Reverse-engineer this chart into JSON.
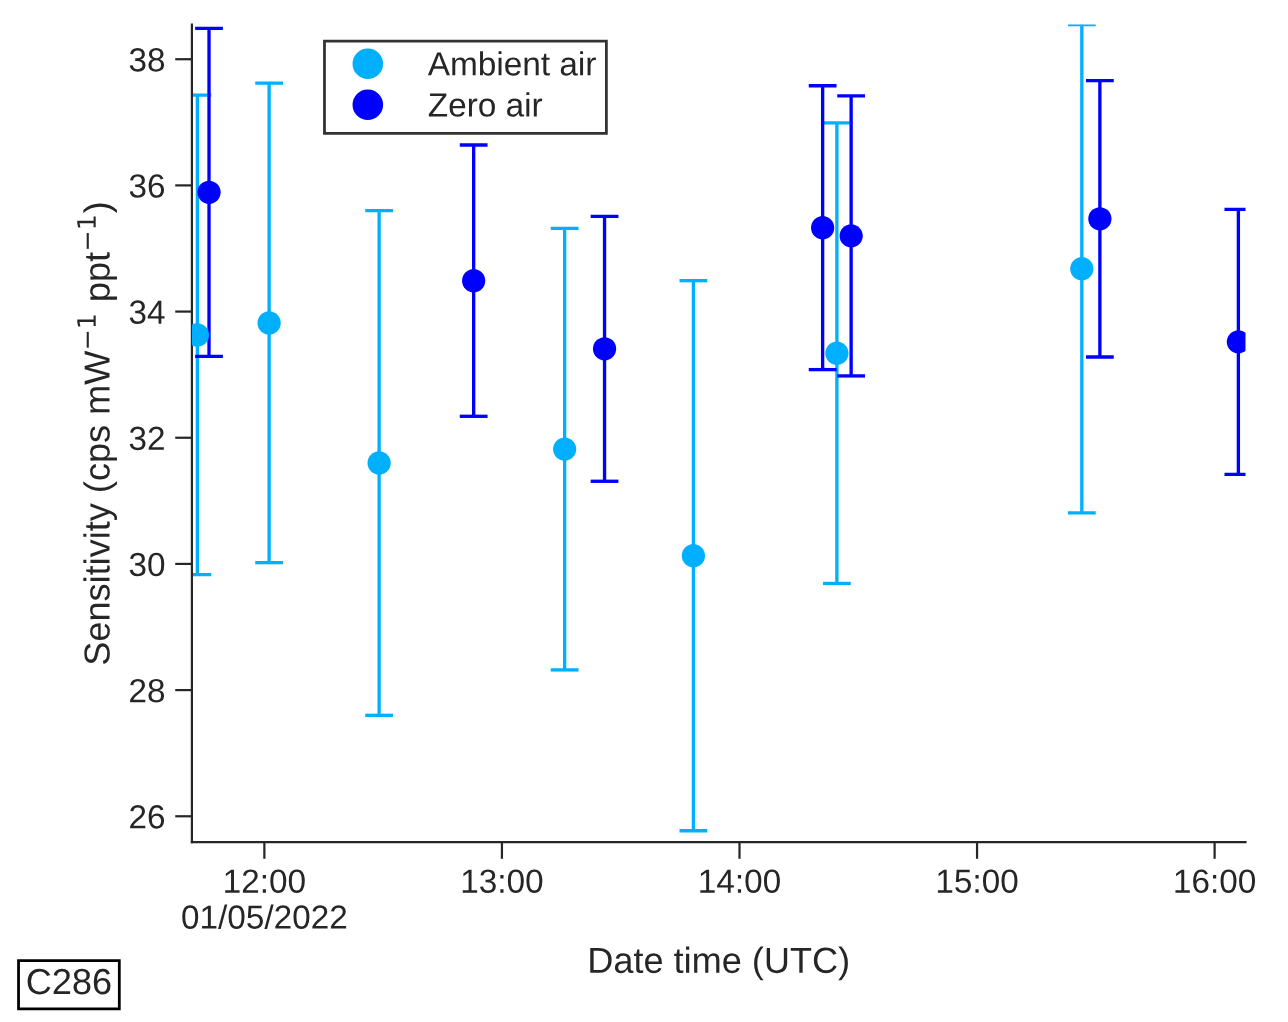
{
  "chart_data": {
    "type": "scatter",
    "xlabel": "Date time (UTC)",
    "ylabel": "Sensitivity (cps mW$^{−1}$ ppt$^{−1}$)",
    "annotations": [
      "C286"
    ],
    "series": [
      {
        "name": "Ambient air",
        "color": "#00b0ff",
        "x": [
          11.718,
          12.02,
          12.483,
          13.264,
          13.806,
          14.41,
          15.441
        ],
        "values": [
          33.63,
          33.82,
          31.6,
          31.82,
          30.13,
          33.34,
          34.68
        ],
        "errors": [
          3.8,
          3.8,
          4.0,
          3.5,
          4.36,
          3.65,
          3.87
        ]
      },
      {
        "name": "Zero air",
        "color": "#0000ff",
        "x": [
          11.767,
          12.881,
          13.432,
          14.35,
          14.47,
          15.517,
          16.1
        ],
        "values": [
          35.89,
          34.49,
          33.41,
          35.33,
          35.2,
          35.47,
          33.52
        ],
        "errors": [
          2.6,
          2.15,
          2.1,
          2.25,
          2.22,
          2.19,
          2.1
        ]
      }
    ],
    "xlim": [
      11.695,
      16.13
    ],
    "xticks": [
      {
        "value": 12,
        "label": "12:00\n01/05/2022"
      },
      {
        "value": 13,
        "label": "13:00"
      },
      {
        "value": 14,
        "label": "14:00"
      },
      {
        "value": 15,
        "label": "15:00"
      },
      {
        "value": 16,
        "label": "16:00"
      }
    ],
    "ylim": [
      25.59,
      38.55
    ],
    "yticks": [
      26,
      28,
      30,
      32,
      34,
      36,
      38
    ],
    "grid": false,
    "legend": "top left",
    "marker": "circle"
  }
}
